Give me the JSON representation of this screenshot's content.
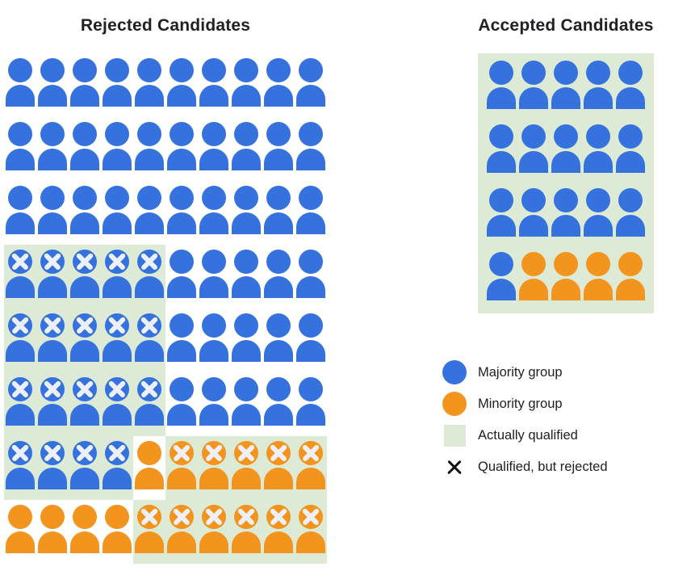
{
  "titles": {
    "rejected": "Rejected Candidates",
    "accepted": "Accepted Candidates"
  },
  "legend": {
    "majority": "Majority group",
    "minority": "Minority group",
    "qualified": "Actually qualified",
    "rejected_x": "Qualified, but rejected"
  },
  "colors": {
    "majority_blue": "#3672DD",
    "minority_orange": "#F2941D",
    "qualified_green": "#DCEAD6",
    "icon_x": "#EDF1F7",
    "legend_x": "#111111",
    "text": "#202124",
    "background": "#FFFFFF"
  },
  "cell_codes": {
    "B": "majority-group person",
    "O": "minority-group person",
    "X": "crossed out (qualified, but rejected)",
    "q": "on actually-qualified green background"
  },
  "grids": {
    "rejected": {
      "columns": 10,
      "rows": [
        [
          "B",
          "B",
          "B",
          "B",
          "B",
          "B",
          "B",
          "B",
          "B",
          "B"
        ],
        [
          "B",
          "B",
          "B",
          "B",
          "B",
          "B",
          "B",
          "B",
          "B",
          "B"
        ],
        [
          "B",
          "B",
          "B",
          "B",
          "B",
          "B",
          "B",
          "B",
          "B",
          "B"
        ],
        [
          "BXq",
          "BXq",
          "BXq",
          "BXq",
          "BXq",
          "B",
          "B",
          "B",
          "B",
          "B"
        ],
        [
          "BXq",
          "BXq",
          "BXq",
          "BXq",
          "BXq",
          "B",
          "B",
          "B",
          "B",
          "B"
        ],
        [
          "BXq",
          "BXq",
          "BXq",
          "BXq",
          "BXq",
          "B",
          "B",
          "B",
          "B",
          "B"
        ],
        [
          "BXq",
          "BXq",
          "BXq",
          "BXq",
          "O",
          "OXq",
          "OXq",
          "OXq",
          "OXq",
          "OXq"
        ],
        [
          "O",
          "O",
          "O",
          "O",
          "OXq",
          "OXq",
          "OXq",
          "OXq",
          "OXq",
          "OXq"
        ]
      ]
    },
    "accepted": {
      "columns": 5,
      "panel_qualified": true,
      "rows": [
        [
          "B",
          "B",
          "B",
          "B",
          "B"
        ],
        [
          "B",
          "B",
          "B",
          "B",
          "B"
        ],
        [
          "B",
          "B",
          "B",
          "B",
          "B"
        ],
        [
          "B",
          "O",
          "O",
          "O",
          "O"
        ]
      ]
    }
  }
}
